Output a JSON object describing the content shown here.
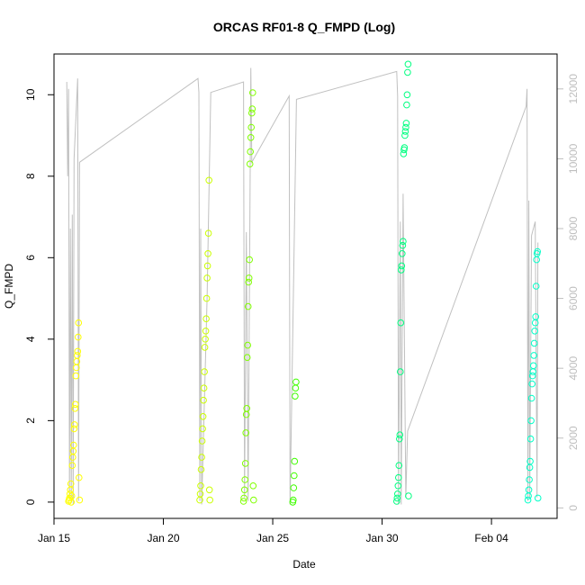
{
  "chart_data": {
    "type": "scatter",
    "title": "ORCAS RF01-8 Q_FMPD (Log)",
    "xlabel": "Date",
    "ylabel": "Q_FMPD",
    "x_axis": {
      "kind": "date",
      "range": [
        "2016-01-15",
        "2016-02-07"
      ],
      "ticks": [
        {
          "value": "2016-01-15",
          "label": "Jan 15"
        },
        {
          "value": "2016-01-20",
          "label": "Jan 20"
        },
        {
          "value": "2016-01-25",
          "label": "Jan 25"
        },
        {
          "value": "2016-01-30",
          "label": "Jan 30"
        },
        {
          "value": "2016-02-04",
          "label": "Feb 04"
        }
      ]
    },
    "y_axis_left": {
      "range": [
        -0.4,
        11.0
      ],
      "ticks": [
        0,
        2,
        4,
        6,
        8,
        10
      ]
    },
    "y_axis_right": {
      "range": [
        -300,
        13000
      ],
      "ticks": [
        0,
        2000,
        4000,
        6000,
        8000,
        10000,
        12000
      ],
      "color": "#bebebe"
    },
    "grid": false,
    "legend": "none",
    "series": [
      {
        "color": "#ffff00",
        "marker": "open-circle",
        "points": [
          [
            "2016-01-15 16:00",
            0.02
          ],
          [
            "2016-01-15 16:30",
            0.05
          ],
          [
            "2016-01-15 17:00",
            0.1
          ],
          [
            "2016-01-15 17:30",
            0.2
          ],
          [
            "2016-01-15 18:00",
            0.3
          ],
          [
            "2016-01-15 18:30",
            0.45
          ],
          [
            "2016-01-15 19:00",
            0.0
          ],
          [
            "2016-01-15 19:30",
            0.15
          ],
          [
            "2016-01-15 20:00",
            0.9
          ],
          [
            "2016-01-15 20:30",
            1.1
          ],
          [
            "2016-01-15 21:00",
            1.25
          ],
          [
            "2016-01-15 21:30",
            1.4
          ],
          [
            "2016-01-15 22:00",
            1.8
          ],
          [
            "2016-01-15 22:30",
            1.9
          ],
          [
            "2016-01-15 23:00",
            2.3
          ],
          [
            "2016-01-15 23:30",
            2.4
          ],
          [
            "2016-01-16 00:00",
            3.1
          ],
          [
            "2016-01-16 00:30",
            3.3
          ],
          [
            "2016-01-16 01:00",
            3.45
          ],
          [
            "2016-01-16 01:30",
            3.6
          ],
          [
            "2016-01-16 02:00",
            3.7
          ],
          [
            "2016-01-16 02:30",
            4.05
          ],
          [
            "2016-01-16 03:00",
            4.4
          ],
          [
            "2016-01-16 03:30",
            0.6
          ],
          [
            "2016-01-16 04:00",
            0.05
          ]
        ]
      },
      {
        "color": "#ccff00",
        "marker": "open-circle",
        "points": [
          [
            "2016-01-21 16:00",
            0.05
          ],
          [
            "2016-01-21 16:30",
            0.2
          ],
          [
            "2016-01-21 17:00",
            0.4
          ],
          [
            "2016-01-21 17:30",
            0.8
          ],
          [
            "2016-01-21 18:00",
            1.1
          ],
          [
            "2016-01-21 18:30",
            1.5
          ],
          [
            "2016-01-21 19:00",
            1.8
          ],
          [
            "2016-01-21 19:30",
            2.1
          ],
          [
            "2016-01-21 20:00",
            2.5
          ],
          [
            "2016-01-21 20:30",
            2.8
          ],
          [
            "2016-01-21 21:00",
            3.2
          ],
          [
            "2016-01-21 21:30",
            3.8
          ],
          [
            "2016-01-21 22:00",
            4.0
          ],
          [
            "2016-01-21 22:30",
            4.2
          ],
          [
            "2016-01-21 23:00",
            4.5
          ],
          [
            "2016-01-21 23:30",
            5.0
          ],
          [
            "2016-01-22 00:00",
            5.5
          ],
          [
            "2016-01-22 00:30",
            5.8
          ],
          [
            "2016-01-22 01:00",
            6.1
          ],
          [
            "2016-01-22 01:30",
            6.6
          ],
          [
            "2016-01-22 02:00",
            7.9
          ],
          [
            "2016-01-22 02:30",
            0.3
          ],
          [
            "2016-01-22 03:00",
            0.05
          ]
        ]
      },
      {
        "color": "#80ff00",
        "marker": "open-circle",
        "points": [
          [
            "2016-01-23 16:00",
            0.02
          ],
          [
            "2016-01-23 16:30",
            0.1
          ],
          [
            "2016-01-23 17:00",
            0.3
          ],
          [
            "2016-01-23 17:30",
            0.55
          ],
          [
            "2016-01-23 18:00",
            0.95
          ],
          [
            "2016-01-23 18:30",
            1.7
          ],
          [
            "2016-01-23 19:00",
            2.15
          ],
          [
            "2016-01-23 19:30",
            2.3
          ],
          [
            "2016-01-23 20:00",
            3.55
          ],
          [
            "2016-01-23 20:30",
            3.85
          ],
          [
            "2016-01-23 21:00",
            4.8
          ],
          [
            "2016-01-23 21:30",
            5.4
          ],
          [
            "2016-01-23 22:00",
            5.5
          ],
          [
            "2016-01-23 22:30",
            5.95
          ],
          [
            "2016-01-23 23:00",
            8.3
          ],
          [
            "2016-01-23 23:30",
            8.6
          ],
          [
            "2016-01-24 00:00",
            8.95
          ],
          [
            "2016-01-24 00:30",
            9.2
          ],
          [
            "2016-01-24 01:00",
            9.55
          ],
          [
            "2016-01-24 01:30",
            9.65
          ],
          [
            "2016-01-24 02:00",
            10.05
          ],
          [
            "2016-01-24 02:30",
            0.4
          ],
          [
            "2016-01-24 03:00",
            0.05
          ]
        ]
      },
      {
        "color": "#40ff00",
        "marker": "open-circle",
        "points": [
          [
            "2016-01-25 22:00",
            0.0
          ],
          [
            "2016-01-25 22:30",
            0.05
          ],
          [
            "2016-01-25 23:00",
            0.35
          ],
          [
            "2016-01-25 23:30",
            0.65
          ],
          [
            "2016-01-26 00:00",
            1.0
          ],
          [
            "2016-01-26 00:30",
            2.6
          ],
          [
            "2016-01-26 01:00",
            2.8
          ],
          [
            "2016-01-26 01:30",
            2.95
          ]
        ]
      },
      {
        "color": "#00ff80",
        "marker": "open-circle",
        "points": [
          [
            "2016-01-30 16:00",
            0.02
          ],
          [
            "2016-01-30 16:30",
            0.1
          ],
          [
            "2016-01-30 17:00",
            0.2
          ],
          [
            "2016-01-30 17:30",
            0.4
          ],
          [
            "2016-01-30 18:00",
            0.6
          ],
          [
            "2016-01-30 18:30",
            0.9
          ],
          [
            "2016-01-30 19:00",
            1.55
          ],
          [
            "2016-01-30 19:30",
            1.65
          ],
          [
            "2016-01-30 20:00",
            3.2
          ],
          [
            "2016-01-30 20:30",
            4.4
          ],
          [
            "2016-01-30 21:00",
            5.7
          ],
          [
            "2016-01-30 21:30",
            5.8
          ],
          [
            "2016-01-30 22:00",
            6.1
          ],
          [
            "2016-01-30 22:30",
            6.3
          ],
          [
            "2016-01-30 23:00",
            6.4
          ],
          [
            "2016-01-30 23:30",
            8.55
          ],
          [
            "2016-01-31 00:00",
            8.65
          ],
          [
            "2016-01-31 00:30",
            8.7
          ],
          [
            "2016-01-31 01:00",
            9.0
          ],
          [
            "2016-01-31 01:30",
            9.1
          ],
          [
            "2016-01-31 02:00",
            9.2
          ],
          [
            "2016-01-31 02:30",
            9.3
          ],
          [
            "2016-01-31 03:00",
            9.75
          ],
          [
            "2016-01-31 03:30",
            10.0
          ],
          [
            "2016-01-31 04:00",
            10.55
          ],
          [
            "2016-01-31 04:30",
            10.75
          ],
          [
            "2016-01-31 05:00",
            0.15
          ]
        ]
      },
      {
        "color": "#00ffc8",
        "marker": "open-circle",
        "points": [
          [
            "2016-02-05 16:00",
            0.05
          ],
          [
            "2016-02-05 16:30",
            0.15
          ],
          [
            "2016-02-05 17:00",
            0.3
          ],
          [
            "2016-02-05 17:30",
            0.55
          ],
          [
            "2016-02-05 18:00",
            0.85
          ],
          [
            "2016-02-05 18:30",
            1.0
          ],
          [
            "2016-02-05 19:00",
            1.55
          ],
          [
            "2016-02-05 19:30",
            2.0
          ],
          [
            "2016-02-05 20:00",
            2.55
          ],
          [
            "2016-02-05 20:30",
            2.9
          ],
          [
            "2016-02-05 21:00",
            3.1
          ],
          [
            "2016-02-05 21:30",
            3.2
          ],
          [
            "2016-02-05 22:00",
            3.35
          ],
          [
            "2016-02-05 22:30",
            3.6
          ],
          [
            "2016-02-05 23:00",
            3.9
          ],
          [
            "2016-02-05 23:30",
            4.2
          ],
          [
            "2016-02-06 00:00",
            4.4
          ],
          [
            "2016-02-06 00:30",
            4.55
          ],
          [
            "2016-02-06 01:00",
            5.3
          ],
          [
            "2016-02-06 01:30",
            5.95
          ],
          [
            "2016-02-06 02:00",
            6.1
          ],
          [
            "2016-02-06 02:30",
            6.15
          ],
          [
            "2016-02-06 03:00",
            0.1
          ]
        ]
      }
    ],
    "secondary_line": {
      "color": "#c0c0c0",
      "axis": "right",
      "points": [
        [
          "2016-01-15 14:00",
          12200
        ],
        [
          "2016-01-15 15:00",
          9500
        ],
        [
          "2016-01-15 16:00",
          12000
        ],
        [
          "2016-01-15 17:00",
          300
        ],
        [
          "2016-01-15 18:00",
          8000
        ],
        [
          "2016-01-15 19:00",
          200
        ],
        [
          "2016-01-15 20:00",
          8400
        ],
        [
          "2016-01-15 21:00",
          100
        ],
        [
          "2016-01-15 22:00",
          10000
        ],
        [
          "2016-01-16 02:00",
          12300
        ],
        [
          "2016-01-16 03:00",
          200
        ],
        [
          "2016-01-16 04:00",
          9900
        ],
        [
          "2016-01-21 14:00",
          12300
        ],
        [
          "2016-01-21 15:00",
          11900
        ],
        [
          "2016-01-21 16:00",
          200
        ],
        [
          "2016-01-21 17:00",
          8000
        ],
        [
          "2016-01-21 18:00",
          100
        ],
        [
          "2016-01-22 00:00",
          6000
        ],
        [
          "2016-01-22 04:00",
          11900
        ],
        [
          "2016-01-23 16:00",
          12200
        ],
        [
          "2016-01-23 17:00",
          300
        ],
        [
          "2016-01-23 19:00",
          7900
        ],
        [
          "2016-01-23 21:00",
          200
        ],
        [
          "2016-01-24 00:00",
          12600
        ],
        [
          "2016-01-24 01:00",
          9900
        ],
        [
          "2016-01-25 18:00",
          11800
        ],
        [
          "2016-01-25 19:00",
          100
        ],
        [
          "2016-01-26 02:00",
          11700
        ],
        [
          "2016-01-30 16:00",
          12500
        ],
        [
          "2016-01-30 17:00",
          11800
        ],
        [
          "2016-01-30 18:00",
          100
        ],
        [
          "2016-01-30 20:00",
          8200
        ],
        [
          "2016-01-30 21:00",
          100
        ],
        [
          "2016-01-30 23:00",
          9000
        ],
        [
          "2016-01-31 02:00",
          300
        ],
        [
          "2016-01-31 04:00",
          2200
        ],
        [
          "2016-02-05 14:00",
          11500
        ],
        [
          "2016-02-05 15:00",
          12000
        ],
        [
          "2016-02-05 16:00",
          200
        ],
        [
          "2016-02-05 17:00",
          8800
        ],
        [
          "2016-02-05 18:00",
          300
        ],
        [
          "2016-02-05 20:00",
          7800
        ],
        [
          "2016-02-06 00:00",
          8200
        ],
        [
          "2016-02-06 02:00",
          300
        ],
        [
          "2016-02-06 03:00",
          7600
        ]
      ]
    }
  }
}
